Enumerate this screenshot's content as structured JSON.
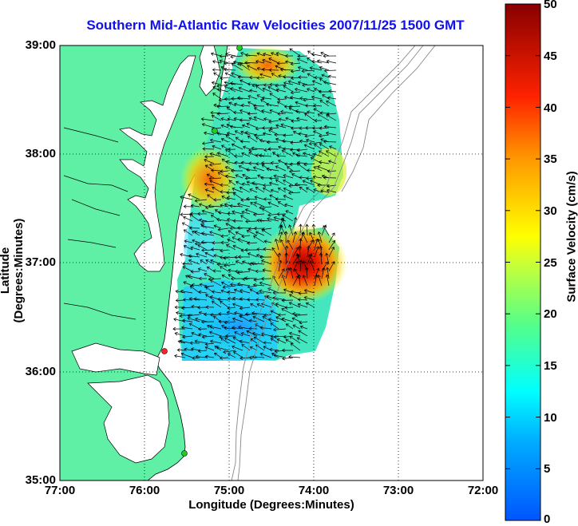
{
  "title": "Southern Mid-Atlantic Raw Velocities 2007/11/25 1500 GMT",
  "x_axis": {
    "label": "Longitude (Degrees:Minutes)",
    "ticks": [
      "77:00",
      "76:00",
      "75:00",
      "74:00",
      "73:00",
      "72:00"
    ]
  },
  "y_axis": {
    "label": "Latitude (Degrees:Minutes)",
    "ticks": [
      "39:00",
      "38:00",
      "37:00",
      "36:00",
      "35:00"
    ]
  },
  "colorbar": {
    "label": "Surface Velocity (cm/s)",
    "min": 0,
    "max": 50,
    "ticks": [
      "50",
      "45",
      "40",
      "35",
      "30",
      "25",
      "20",
      "15",
      "10",
      "5",
      "0"
    ],
    "colors": [
      "#0000ff",
      "#00aaff",
      "#00ffff",
      "#55ff99",
      "#ffff00",
      "#ff9900",
      "#ff0000",
      "#990000"
    ]
  },
  "map_colors": {
    "land": "#5ff0a6",
    "water": "#ffffff",
    "grid": "#000000",
    "bathymetry": "#888888",
    "station_green": "#22cc22",
    "station_red": "#ff2222"
  },
  "chart_data": {
    "type": "heatmap",
    "description_units": "surface velocity cm/s on lon/lat grid",
    "xlim": [
      -77,
      -72
    ],
    "ylim": [
      35,
      39
    ],
    "vmin": 0,
    "vmax": 50,
    "hotspots": [
      {
        "lon": -74.05,
        "lat": 36.95,
        "value": 48
      },
      {
        "lon": -75.25,
        "lat": 37.85,
        "value": 35
      },
      {
        "lon": -74.8,
        "lat": 38.85,
        "value": 30
      },
      {
        "lon": -75.3,
        "lat": 36.3,
        "value": 8
      }
    ],
    "stations": [
      {
        "lon": -74.9,
        "lat": 39.0,
        "color": "green"
      },
      {
        "lon": -75.15,
        "lat": 38.2,
        "color": "green"
      },
      {
        "lon": -75.7,
        "lat": 36.18,
        "color": "red"
      },
      {
        "lon": -75.5,
        "lat": 35.25,
        "color": "green"
      }
    ]
  }
}
